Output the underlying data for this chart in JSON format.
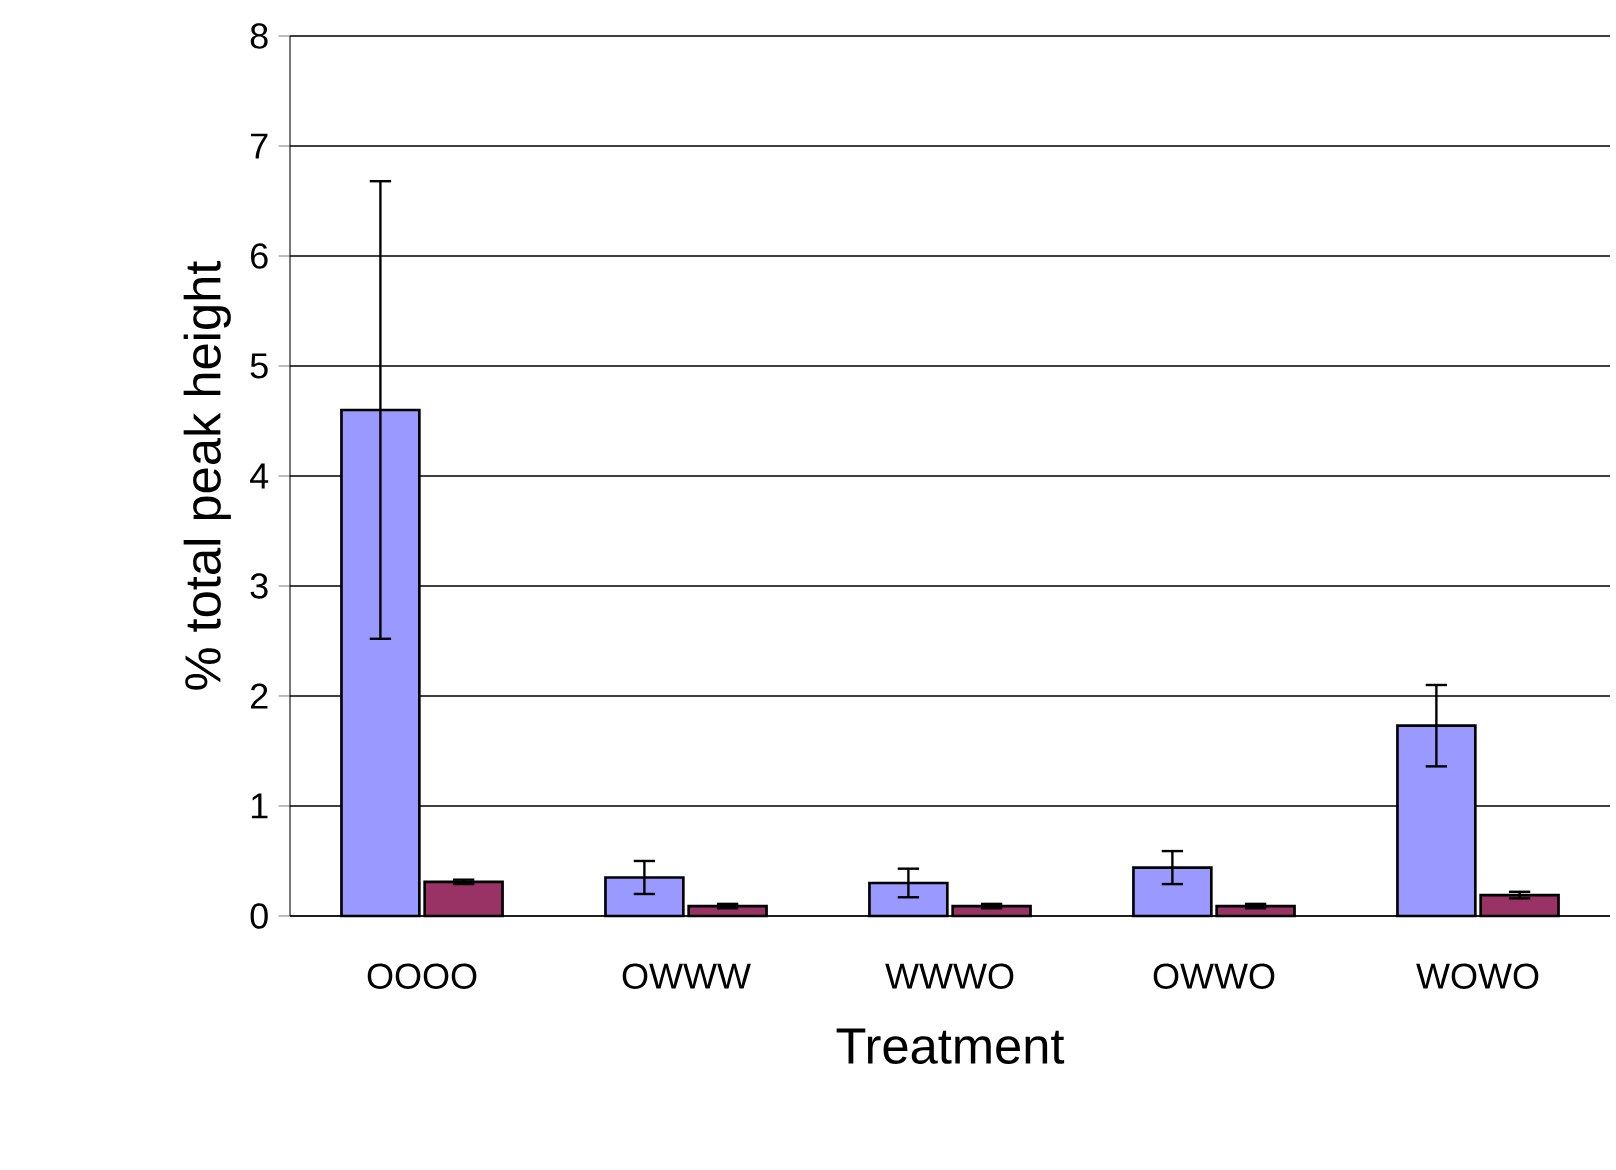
{
  "chart_data": {
    "type": "bar",
    "xlabel": "Treatment",
    "ylabel": "% total peak height",
    "categories": [
      "OOOO",
      "OWWW",
      "WWWO",
      "OWWO",
      "WOWO"
    ],
    "series": [
      {
        "color": "#9999ff",
        "values": [
          4.6,
          0.35,
          0.3,
          0.44,
          1.73
        ],
        "errors": [
          2.08,
          0.15,
          0.13,
          0.15,
          0.37
        ]
      },
      {
        "color": "#993366",
        "values": [
          0.31,
          0.09,
          0.09,
          0.09,
          0.19
        ],
        "errors": [
          0.02,
          0.02,
          0.02,
          0.02,
          0.03
        ]
      }
    ],
    "ylim": [
      0,
      8
    ],
    "yticks": [
      0,
      1,
      2,
      3,
      4,
      5,
      6,
      7,
      8
    ],
    "grid": "y"
  }
}
